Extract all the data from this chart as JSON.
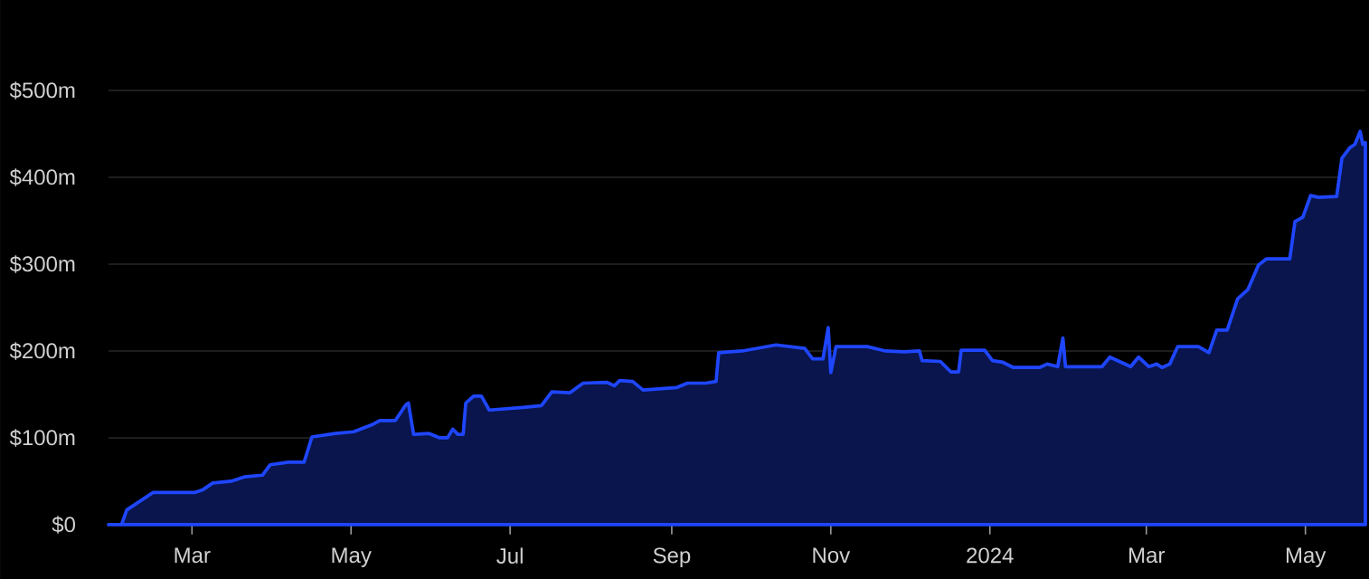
{
  "chart_data": {
    "type": "area",
    "color": "#1f46ff",
    "grid": "y",
    "x": [
      "2023-01-28",
      "2023-02-02",
      "2023-02-04",
      "2023-02-14",
      "2023-03-02",
      "2023-03-05",
      "2023-03-09",
      "2023-03-16",
      "2023-03-21",
      "2023-03-28",
      "2023-03-31",
      "2023-04-07",
      "2023-04-13",
      "2023-04-16",
      "2023-04-25",
      "2023-05-02",
      "2023-05-09",
      "2023-05-12",
      "2023-05-18",
      "2023-05-22",
      "2023-05-23",
      "2023-05-25",
      "2023-05-31",
      "2023-06-04",
      "2023-06-07",
      "2023-06-09",
      "2023-06-11",
      "2023-06-13",
      "2023-06-14",
      "2023-06-17",
      "2023-06-20",
      "2023-06-23",
      "2023-07-06",
      "2023-07-13",
      "2023-07-17",
      "2023-07-24",
      "2023-07-29",
      "2023-08-07",
      "2023-08-10",
      "2023-08-12",
      "2023-08-17",
      "2023-08-21",
      "2023-09-03",
      "2023-09-07",
      "2023-09-14",
      "2023-09-18",
      "2023-09-19",
      "2023-09-28",
      "2023-10-11",
      "2023-10-22",
      "2023-10-25",
      "2023-10-29",
      "2023-10-31",
      "2023-11-01",
      "2023-11-03",
      "2023-11-15",
      "2023-11-22",
      "2023-11-29",
      "2023-12-05",
      "2023-12-06",
      "2023-12-13",
      "2023-12-17",
      "2023-12-20",
      "2023-12-21",
      "2023-12-30",
      "2024-01-02",
      "2024-01-06",
      "2024-01-10",
      "2024-01-20",
      "2024-01-23",
      "2024-01-27",
      "2024-01-29",
      "2024-01-30",
      "2024-02-13",
      "2024-02-16",
      "2024-02-24",
      "2024-02-27",
      "2024-03-02",
      "2024-03-05",
      "2024-03-07",
      "2024-03-10",
      "2024-03-13",
      "2024-03-21",
      "2024-03-25",
      "2024-03-28",
      "2024-04-01",
      "2024-04-05",
      "2024-04-09",
      "2024-04-13",
      "2024-04-16",
      "2024-04-25",
      "2024-04-27",
      "2024-04-30",
      "2024-05-03",
      "2024-05-06",
      "2024-05-13",
      "2024-05-15",
      "2024-05-18",
      "2024-05-20",
      "2024-05-22",
      "2024-05-23",
      "2024-05-24"
    ],
    "values": [
      0,
      0,
      17,
      37,
      37,
      40,
      48,
      50,
      55,
      57,
      69,
      72,
      72,
      101,
      105,
      107,
      115,
      120,
      120,
      138,
      140,
      104,
      105,
      100,
      100,
      110,
      104,
      104,
      140,
      148,
      148,
      132,
      135,
      137,
      153,
      152,
      163,
      164,
      160,
      166,
      165,
      155,
      158,
      163,
      163,
      165,
      198,
      200,
      207,
      203,
      191,
      191,
      227,
      175,
      205,
      205,
      200,
      199,
      200,
      189,
      188,
      176,
      176,
      201,
      201,
      189,
      187,
      181,
      181,
      185,
      182,
      215,
      182,
      182,
      193,
      182,
      193,
      182,
      185,
      181,
      185,
      205,
      205,
      198,
      224,
      224,
      260,
      271,
      299,
      306,
      306,
      349,
      354,
      379,
      377,
      378,
      422,
      434,
      438,
      453,
      438,
      440
    ],
    "xlim": [
      "2023-01-28",
      "2024-05-24"
    ],
    "ylim": [
      0,
      500
    ],
    "xticks": [
      {
        "value": "2023-03-01",
        "label": "Mar"
      },
      {
        "value": "2023-05-01",
        "label": "May"
      },
      {
        "value": "2023-07-01",
        "label": "Jul"
      },
      {
        "value": "2023-09-01",
        "label": "Sep"
      },
      {
        "value": "2023-11-01",
        "label": "Nov"
      },
      {
        "value": "2024-01-01",
        "label": "2024"
      },
      {
        "value": "2024-03-01",
        "label": "Mar"
      },
      {
        "value": "2024-05-01",
        "label": "May"
      }
    ],
    "yticks": [
      {
        "value": 0,
        "label": "$0"
      },
      {
        "value": 100,
        "label": "$100m"
      },
      {
        "value": 200,
        "label": "$200m"
      },
      {
        "value": 300,
        "label": "$300m"
      },
      {
        "value": 400,
        "label": "$400m"
      },
      {
        "value": 500,
        "label": "$500m"
      }
    ]
  }
}
